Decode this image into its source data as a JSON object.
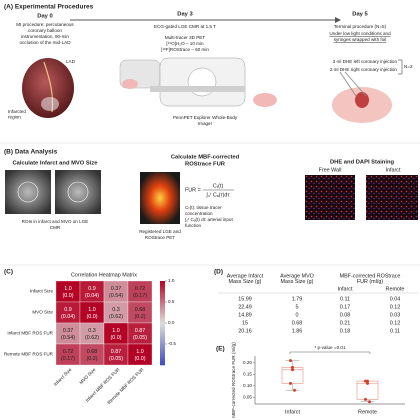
{
  "panel_a": {
    "label": "(A) Experimental Procedures",
    "day0": {
      "title": "Day 0",
      "lines": [
        "MI procedure: percutaneous",
        "coronary balloon",
        "instrumentation, 90-min",
        "occlusion of the mid-LAD"
      ],
      "lad": "LAD",
      "region": [
        "Infarcted",
        "region"
      ]
    },
    "day3": {
      "title": "Day 3",
      "lines": [
        "ECG-gated LGE CMR at 1.5 T"
      ],
      "pet": [
        "Multi-tracer 3D PET",
        "[¹⁵O]H₂O – 10 min",
        "[¹⁸F]ROStrace – 60 min"
      ],
      "imager": [
        "PennPET Explorer Whole-Body",
        "Imager"
      ]
    },
    "day5": {
      "title": "Day 5",
      "lines": [
        "Terminal procedure (N=5)"
      ],
      "conditions": [
        "Under low light conditions and",
        "syringes wrapped with foil"
      ],
      "injections": [
        "3 ml DHE left coronary  injection",
        "2 ml DHE right coronary  injection"
      ],
      "n": "N=2"
    }
  },
  "panel_b": {
    "label": "(B) Data Analysis",
    "infarct": {
      "title": "Calculate Infarct and MVO Size",
      "caption": [
        "ROIs in infarct and MVO on LGE",
        "CMR"
      ]
    },
    "fur": {
      "title": [
        "Calculate MBF-corrected",
        "ROStrace FUR"
      ],
      "caption": [
        "Registered LGE and",
        "ROStrace PET"
      ],
      "formula_lhs": "FUR =",
      "numerator": "Cₜ(t)",
      "denominator": "∫₀ᵗ Cₐ(τ)dτ",
      "definitions": [
        "Cₜ(t): tissue tracer",
        "concentration",
        "∫₀ᵗ Cₐ(t) dt: arterial input",
        "function"
      ]
    },
    "staining": {
      "title": "DHE and DAPI Staining",
      "left": "Free Wall",
      "right": "Infarct"
    }
  },
  "panel_c": {
    "label": "(C)",
    "heading": "Correlation Heatmap Matrix",
    "labels": [
      "Infarct Size",
      "MVO Size",
      "Infarct MBF ROS FUR",
      "Remote MBF ROS FUR"
    ],
    "values": [
      [
        1,
        0.9,
        0.37,
        0.72
      ],
      [
        0.9,
        1,
        0.3,
        0.68
      ],
      [
        0.37,
        0.3,
        1,
        0.87
      ],
      [
        0.72,
        0.68,
        0.87,
        1
      ]
    ],
    "value_labels": [
      [
        "1.0",
        "0.9",
        "0.37",
        "0.72"
      ],
      [
        "0.9",
        "1.0",
        "0.3",
        "0.68"
      ],
      [
        "0.37",
        "0.3",
        "1.0",
        "0.87"
      ],
      [
        "0.72",
        "0.68",
        "0.87",
        "1.0"
      ]
    ],
    "p_labels": [
      [
        "(0.0)",
        "(0.04)",
        "(0.54)",
        "(0.17)"
      ],
      [
        "(0.04)",
        "(0.0)",
        "(0.62)",
        "(0.2)"
      ],
      [
        "(0.54)",
        "(0.62)",
        "(0.0)",
        "(0.05)"
      ],
      [
        "(0.17)",
        "(0.2)",
        "(0.05)",
        "(0.0)"
      ]
    ],
    "clim": [
      -1,
      1
    ],
    "colorbar_ticks": [
      {
        "value": 1,
        "label": "1.0"
      },
      {
        "value": 0.5,
        "label": "0.5"
      },
      {
        "value": 0,
        "label": "0.0"
      },
      {
        "value": -0.5,
        "label": "-0.5"
      }
    ]
  },
  "panel_d": {
    "label": "(D)",
    "headers": [
      [
        "Average Infarct",
        "Mass Size (g)"
      ],
      [
        "Average MVO",
        "Mass Size (g)"
      ],
      [
        "MBF-corrected ROStrace",
        "FUR (ml/g)"
      ]
    ],
    "subheaders": [
      "Infarct",
      "Remote"
    ],
    "rows": [
      [
        "15.99",
        "1.79",
        "0.11",
        "0.04"
      ],
      [
        "22.49",
        "5",
        "0.17",
        "0.12"
      ],
      [
        "14.89",
        "0",
        "0.08",
        "0.03"
      ],
      [
        "15",
        "0.68",
        "0.21",
        "0.12"
      ],
      [
        "20.16",
        "1.86",
        "0.18",
        "0.11"
      ]
    ]
  },
  "chart_data": {
    "type": "box",
    "title": "(E)",
    "annotation": "* p-value =0.01",
    "y_label": "MBF-corrected ROStrace FUR (ml/g)",
    "categories": [
      "Infarct",
      "Remote"
    ],
    "points": [
      [
        0.11,
        0.17,
        0.08,
        0.21,
        0.18
      ],
      [
        0.04,
        0.12,
        0.03,
        0.12,
        0.11
      ]
    ],
    "boxes": [
      {
        "min": 0.08,
        "q1": 0.11,
        "median": 0.17,
        "q3": 0.18,
        "max": 0.21
      },
      {
        "min": 0.03,
        "q1": 0.04,
        "median": 0.11,
        "q3": 0.12,
        "max": 0.12
      }
    ],
    "color": "#e8a090",
    "point_color": "#d04030",
    "ylim": [
      0.02,
      0.23
    ],
    "yticks": [
      0.05,
      {
        "value": 0.1,
        "label": "0.10"
      },
      0.15,
      {
        "value": 0.2,
        "label": "0.20"
      }
    ]
  }
}
